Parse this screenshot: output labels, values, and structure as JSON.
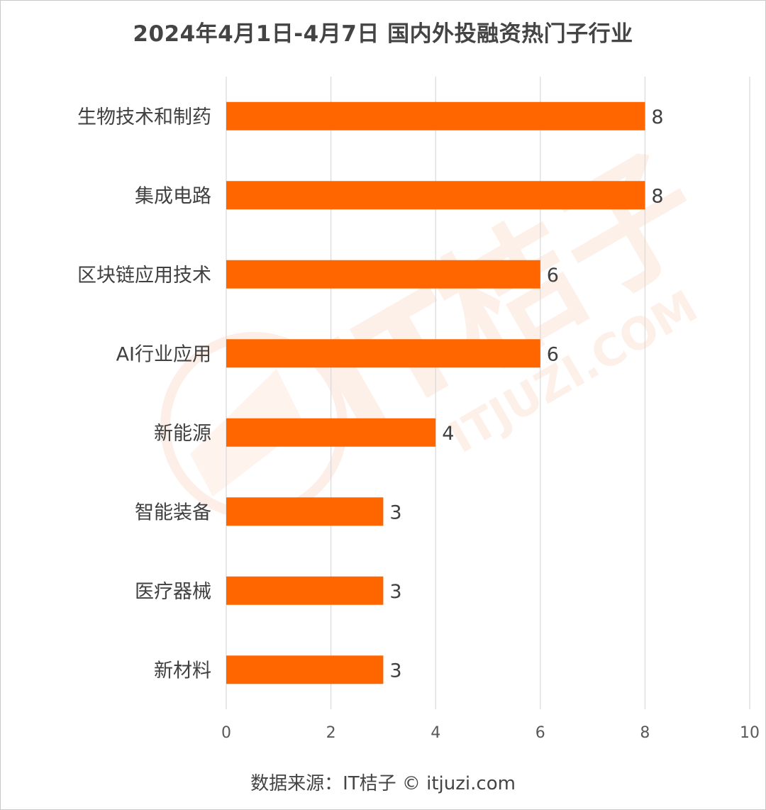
{
  "chart_data": {
    "type": "bar",
    "orientation": "horizontal",
    "title": "2024年4月1日-4月7日 国内外投融资热门子行业",
    "categories": [
      "生物技术和制药",
      "集成电路",
      "区块链应用技术",
      "AI行业应用",
      "新能源",
      "智能装备",
      "医疗器械",
      "新材料"
    ],
    "values": [
      8,
      8,
      6,
      6,
      4,
      3,
      3,
      3
    ],
    "xlim": [
      0,
      10
    ],
    "xticks": [
      "0",
      "2",
      "4",
      "6",
      "8",
      "10"
    ],
    "grid": "vertical",
    "bar_color": "#ff6600",
    "data_labels": true
  },
  "source": "数据来源：IT桔子 © itjuzi.com",
  "watermark": {
    "brand": "IT桔子",
    "url": "ITJUZI.COM",
    "color": "#f7d9cc"
  }
}
